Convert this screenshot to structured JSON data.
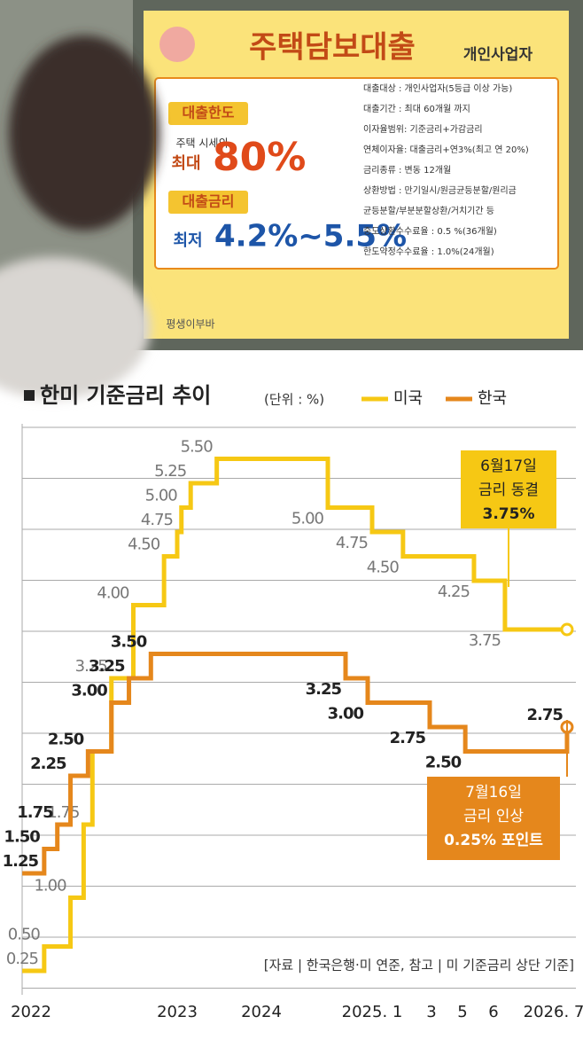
{
  "photo": {
    "poster_title": "주택담보대출",
    "poster_subtitle": "개인사업자",
    "limit_label": "대출한도",
    "limit_desc": "주택 시세의",
    "limit_max": "최대",
    "limit_value": "80%",
    "rate_label": "대출금리",
    "rate_min": "최저",
    "rate_value": "4.2%~5.5%",
    "details": [
      "대출대상 : 개인사업자(5등급 이상 가능)",
      "대출기간 : 최대 60개월 까지",
      "이자율범위: 기준금리+가감금리",
      "연체이자율: 대출금리+연3%(최고 연 20%)",
      "금리종류 : 변동 12개월",
      "상환방법 : 만기일시/원금균등분할/원리금",
      "균등분할/부분분할상환/거치기간 등",
      "중도상환수수료율 : 0.5 %(36개월)",
      "한도약정수수료율 : 1.0%(24개월)"
    ],
    "footer": "평생이부바"
  },
  "chart_data": {
    "type": "step-line",
    "title": "한미 기준금리 추이",
    "unit": "(단위 : %)",
    "categories": [
      "2022",
      "2023",
      "2024",
      "2025. 1",
      "3",
      "5",
      "6",
      "2026. 7"
    ],
    "ylim": [
      0,
      6
    ],
    "series": [
      {
        "name": "미국",
        "color": "#f6c814",
        "x": [
          -0.06,
          0.09,
          0.27,
          0.36,
          0.42,
          0.55,
          0.7,
          0.91,
          1.0,
          1.05,
          1.16,
          1.47,
          2.6,
          3.0,
          3.52,
          5.37,
          6.19,
          7.22
        ],
        "values": [
          0.25,
          0.5,
          1,
          1.75,
          2.5,
          3.25,
          4,
          4.5,
          4.75,
          5,
          5.25,
          5.5,
          5,
          4.75,
          4.5,
          4.25,
          3.75,
          3.75
        ],
        "value_labels": [
          "0.25",
          "0.50",
          "1.00",
          "1.75",
          null,
          "3.25",
          "4.00",
          "4.50",
          "4.75",
          "5.00",
          "5.25",
          "5.50",
          "5.00",
          "4.75",
          "4.50",
          "4.25",
          "3.75",
          null
        ]
      },
      {
        "name": "한국",
        "color": "#e5871c",
        "x": [
          -0.06,
          0.09,
          0.18,
          0.27,
          0.39,
          0.55,
          0.67,
          0.82,
          2.76,
          2.96,
          3.97,
          5.09,
          7.22
        ],
        "values": [
          1.25,
          1.5,
          1.75,
          2.25,
          2.5,
          3,
          3.25,
          3.5,
          3.25,
          3,
          2.75,
          2.5,
          2.75
        ],
        "value_labels": [
          "1.25",
          "1.50",
          "1.75",
          "2.25",
          "2.50",
          "3.00",
          "3.25",
          "3.50",
          "3.25",
          "3.00",
          "2.75",
          "2.50",
          "2.75"
        ]
      }
    ],
    "annotations": [
      {
        "lines": [
          "6월17일",
          "금리 동결",
          "3.75%"
        ]
      },
      {
        "lines": [
          "7월16일",
          "금리 인상",
          "0.25% 포인트"
        ]
      }
    ],
    "source": "[자료 | 한국은행·미 연준, 참고 | 미 기준금리 상단 기준]"
  }
}
